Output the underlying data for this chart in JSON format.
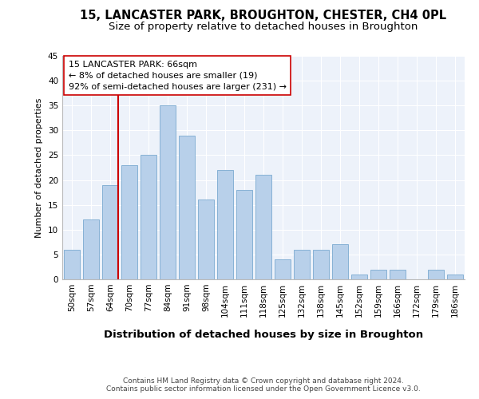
{
  "title1": "15, LANCASTER PARK, BROUGHTON, CHESTER, CH4 0PL",
  "title2": "Size of property relative to detached houses in Broughton",
  "xlabel": "Distribution of detached houses by size in Broughton",
  "ylabel": "Number of detached properties",
  "categories": [
    "50sqm",
    "57sqm",
    "64sqm",
    "70sqm",
    "77sqm",
    "84sqm",
    "91sqm",
    "98sqm",
    "104sqm",
    "111sqm",
    "118sqm",
    "125sqm",
    "132sqm",
    "138sqm",
    "145sqm",
    "152sqm",
    "159sqm",
    "166sqm",
    "172sqm",
    "179sqm",
    "186sqm"
  ],
  "values": [
    6,
    12,
    19,
    23,
    25,
    35,
    29,
    16,
    22,
    18,
    21,
    4,
    6,
    6,
    7,
    1,
    2,
    2,
    0,
    2,
    1
  ],
  "bar_color": "#b8d0ea",
  "bar_edgecolor": "#7aaad0",
  "background_color": "#edf2fa",
  "grid_color": "#ffffff",
  "vline_color": "#cc0000",
  "vline_x_index": 2,
  "annotation_text": "15 LANCASTER PARK: 66sqm\n← 8% of detached houses are smaller (19)\n92% of semi-detached houses are larger (231) →",
  "annotation_box_edgecolor": "#cc0000",
  "ylim": [
    0,
    45
  ],
  "yticks": [
    0,
    5,
    10,
    15,
    20,
    25,
    30,
    35,
    40,
    45
  ],
  "footer": "Contains HM Land Registry data © Crown copyright and database right 2024.\nContains public sector information licensed under the Open Government Licence v3.0.",
  "title1_fontsize": 10.5,
  "title2_fontsize": 9.5,
  "xlabel_fontsize": 9.5,
  "ylabel_fontsize": 8,
  "tick_fontsize": 7.5,
  "annotation_fontsize": 8,
  "footer_fontsize": 6.5
}
